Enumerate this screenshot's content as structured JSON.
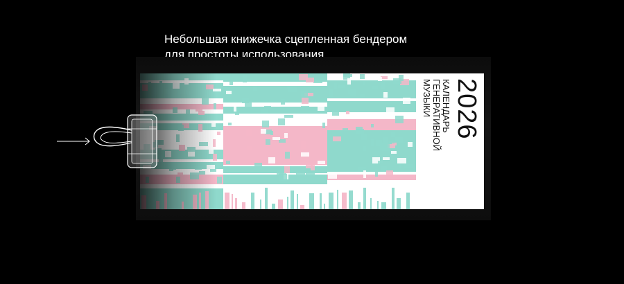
{
  "caption": {
    "line1": "Небольшая книжечка сцепленная бендером",
    "line2": "для простоты использования."
  },
  "booklet": {
    "year": "2026",
    "title_line1": "Календарь",
    "title_line2": "генеративной",
    "title_line3": "музыки"
  },
  "colors": {
    "background": "#000000",
    "mint": "#8fd9cc",
    "pink": "#f4b7c8",
    "paper": "#ffffff",
    "text": "#111111"
  },
  "icons": {
    "arrow": "arrow-right-icon",
    "clip": "binder-clip-icon"
  }
}
